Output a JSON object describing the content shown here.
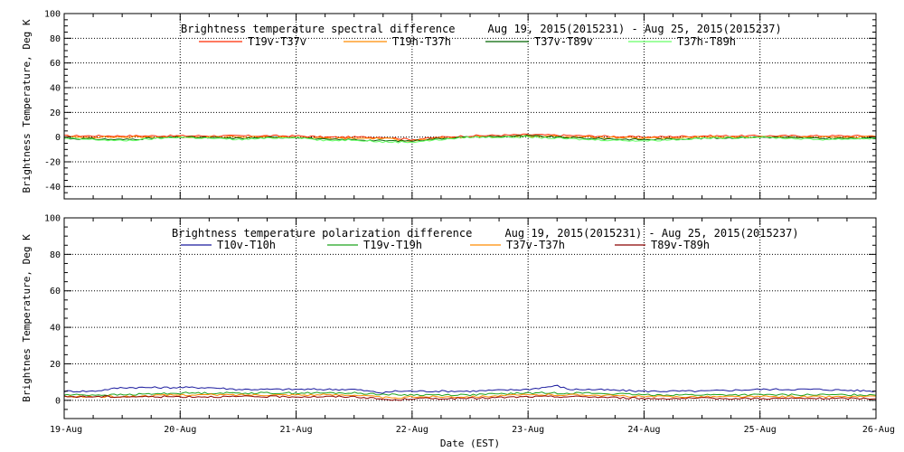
{
  "chart_data": [
    {
      "type": "line",
      "title": "Brightness temperature spectral difference     Aug 19, 2015(2015231) - Aug 25, 2015(2015237)",
      "ylabel": "Brightness Temperature, Deg K",
      "xlabel": "",
      "ylim": [
        -50,
        100
      ],
      "yticks": [
        -40,
        -20,
        0,
        20,
        40,
        60,
        80,
        100
      ],
      "xlim": [
        0,
        7
      ],
      "grid": true,
      "legend_position": "top",
      "series": [
        {
          "name": "T19v-T37v",
          "color": "#ff2a00",
          "x": [
            0,
            0.5,
            1,
            1.5,
            2,
            2.25,
            2.5,
            2.75,
            3,
            3.25,
            3.5,
            4,
            4.5,
            5,
            5.5,
            6,
            6.5,
            7
          ],
          "values": [
            1,
            1,
            1,
            1,
            1,
            0,
            0,
            0,
            -2,
            0,
            1,
            2,
            1,
            0,
            1,
            1,
            1,
            1
          ]
        },
        {
          "name": "T19h-T37h",
          "color": "#ff8c00",
          "x": [
            0,
            0.5,
            1,
            1.5,
            2,
            2.25,
            2.5,
            2.75,
            3,
            3.25,
            3.5,
            4,
            4.5,
            5,
            5.5,
            6,
            6.5,
            7
          ],
          "values": [
            0,
            0,
            0,
            0,
            0,
            -1,
            -1,
            -1,
            -3,
            -1,
            0,
            1,
            0,
            -1,
            0,
            0,
            0,
            0
          ]
        },
        {
          "name": "T37v-T89v",
          "color": "#006400",
          "x": [
            0,
            0.5,
            1,
            1.5,
            2,
            2.25,
            2.5,
            2.75,
            3,
            3.25,
            3.5,
            4,
            4.5,
            5,
            5.5,
            6,
            6.5,
            7
          ],
          "values": [
            -1,
            -2,
            0,
            -1,
            0,
            -2,
            -2,
            -3,
            -3,
            -1,
            0,
            1,
            -1,
            -2,
            -1,
            0,
            -1,
            -1
          ]
        },
        {
          "name": "T37h-T89h",
          "color": "#66ff66",
          "x": [
            0,
            0.5,
            1,
            1.5,
            2,
            2.25,
            2.5,
            2.75,
            3,
            3.25,
            3.5,
            4,
            4.5,
            5,
            5.5,
            6,
            6.5,
            7
          ],
          "values": [
            -1,
            -3,
            0,
            -2,
            0,
            -3,
            -2,
            -4,
            -4,
            -2,
            0,
            0,
            -2,
            -3,
            -1,
            0,
            -2,
            -1
          ]
        }
      ]
    },
    {
      "type": "line",
      "title": "Brightness temperature polarization difference     Aug 19, 2015(2015231) - Aug 25, 2015(2015237)",
      "ylabel": "Brightnes Temperature, Deg K",
      "xlabel": "Date (EST)",
      "ylim": [
        -10,
        100
      ],
      "yticks": [
        0,
        20,
        40,
        60,
        80,
        100
      ],
      "xlim": [
        0,
        7
      ],
      "xticks": [
        "19-Aug",
        "20-Aug",
        "21-Aug",
        "22-Aug",
        "23-Aug",
        "24-Aug",
        "25-Aug",
        "26-Aug"
      ],
      "grid": true,
      "legend_position": "top",
      "series": [
        {
          "name": "T10v-T10h",
          "color": "#1a1a9e",
          "x": [
            0,
            0.25,
            0.5,
            0.75,
            1,
            1.25,
            1.5,
            2,
            2.5,
            2.75,
            2.85,
            3,
            3.5,
            4,
            4.25,
            4.35,
            4.5,
            5,
            5.5,
            6,
            6.5,
            7
          ],
          "values": [
            5,
            5,
            7,
            7,
            7,
            7,
            6,
            6,
            6,
            4,
            5,
            5,
            5,
            6,
            8,
            6,
            6,
            5,
            5,
            6,
            6,
            5
          ]
        },
        {
          "name": "T19v-T19h",
          "color": "#1fa31f",
          "x": [
            0,
            0.5,
            1,
            1.5,
            2,
            2.5,
            2.85,
            3,
            3.5,
            4,
            4.5,
            5,
            5.5,
            6,
            6.5,
            7
          ],
          "values": [
            3,
            3,
            4,
            4,
            4,
            4,
            3,
            3,
            3,
            4,
            4,
            3,
            3,
            3,
            3,
            3
          ]
        },
        {
          "name": "T37v-T37h",
          "color": "#ff8c00",
          "x": [
            0,
            0.5,
            1,
            1.5,
            2,
            2.5,
            2.85,
            3,
            3.5,
            4,
            4.5,
            5,
            5.5,
            6,
            6.5,
            7
          ],
          "values": [
            2,
            2,
            3,
            3,
            3,
            3,
            1,
            2,
            2,
            3,
            3,
            2,
            2,
            2,
            2,
            2
          ]
        },
        {
          "name": "T89v-T89h",
          "color": "#8b0000",
          "x": [
            0,
            0.5,
            1,
            1.5,
            2,
            2.5,
            2.85,
            3,
            3.5,
            4,
            4.5,
            5,
            5.5,
            6,
            6.5,
            7
          ],
          "values": [
            2,
            2,
            2,
            2,
            2,
            2,
            0,
            1,
            1,
            2,
            2,
            1,
            1,
            1,
            1,
            1
          ]
        }
      ]
    }
  ]
}
